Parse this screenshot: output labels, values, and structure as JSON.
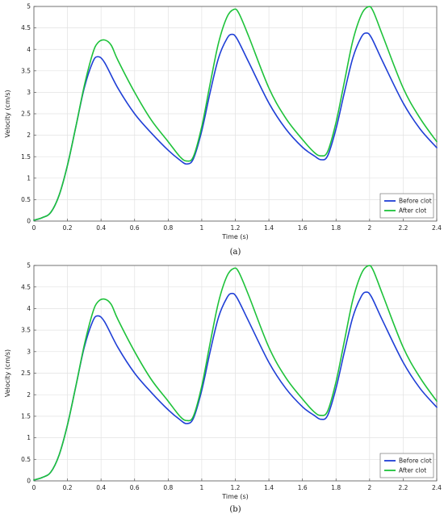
{
  "chart_data": [
    {
      "type": "line",
      "caption": "(a)",
      "xlabel": "Time (s)",
      "ylabel": "Velocity (cm/s)",
      "xlim": [
        0,
        2.4
      ],
      "ylim": [
        0,
        5
      ],
      "xticks": [
        0,
        0.2,
        0.4,
        0.6,
        0.8,
        1,
        1.2,
        1.4,
        1.6,
        1.8,
        2,
        2.2,
        2.4
      ],
      "xtick_labels": [
        "0",
        "0.2",
        "0.4",
        "0.6",
        "0.8",
        "1",
        "1.2",
        "1.4",
        "1.6",
        "1.8",
        "2",
        "2.2",
        "2.4"
      ],
      "yticks": [
        0,
        0.5,
        1,
        1.5,
        2,
        2.5,
        3,
        3.5,
        4,
        4.5,
        5
      ],
      "ytick_labels": [
        "0",
        "0.5",
        "1",
        "1.5",
        "2",
        "2.5",
        "3",
        "3.5",
        "4",
        "4.5",
        "5"
      ],
      "grid": true,
      "legend": "bottom-right",
      "series": [
        {
          "name": "Before clot",
          "color": "#1f3fd6",
          "x": [
            0,
            0.05,
            0.1,
            0.15,
            0.2,
            0.25,
            0.3,
            0.35,
            0.38,
            0.42,
            0.5,
            0.6,
            0.7,
            0.8,
            0.87,
            0.91,
            0.95,
            1.0,
            1.05,
            1.1,
            1.15,
            1.18,
            1.21,
            1.28,
            1.4,
            1.5,
            1.6,
            1.67,
            1.71,
            1.75,
            1.8,
            1.85,
            1.9,
            1.95,
            1.98,
            2.01,
            2.08,
            2.2,
            2.3,
            2.4
          ],
          "y": [
            0.02,
            0.08,
            0.2,
            0.6,
            1.3,
            2.2,
            3.1,
            3.7,
            3.83,
            3.7,
            3.1,
            2.5,
            2.05,
            1.65,
            1.42,
            1.33,
            1.45,
            2.1,
            3.0,
            3.8,
            4.25,
            4.35,
            4.25,
            3.7,
            2.75,
            2.15,
            1.72,
            1.52,
            1.43,
            1.52,
            2.15,
            3.0,
            3.8,
            4.28,
            4.38,
            4.28,
            3.7,
            2.75,
            2.15,
            1.71
          ]
        },
        {
          "name": "After clot",
          "color": "#1ec23a",
          "x": [
            0,
            0.05,
            0.1,
            0.15,
            0.2,
            0.25,
            0.3,
            0.35,
            0.38,
            0.42,
            0.46,
            0.5,
            0.6,
            0.7,
            0.8,
            0.87,
            0.91,
            0.95,
            1.0,
            1.05,
            1.1,
            1.15,
            1.19,
            1.22,
            1.28,
            1.4,
            1.5,
            1.6,
            1.67,
            1.71,
            1.75,
            1.8,
            1.85,
            1.9,
            1.95,
            1.99,
            2.02,
            2.08,
            2.2,
            2.3,
            2.4
          ],
          "y": [
            0.02,
            0.08,
            0.2,
            0.6,
            1.3,
            2.2,
            3.15,
            3.9,
            4.15,
            4.22,
            4.1,
            3.75,
            3.0,
            2.35,
            1.85,
            1.5,
            1.4,
            1.5,
            2.2,
            3.2,
            4.15,
            4.75,
            4.93,
            4.85,
            4.3,
            3.1,
            2.4,
            1.9,
            1.6,
            1.52,
            1.62,
            2.3,
            3.25,
            4.2,
            4.8,
            4.99,
            4.9,
            4.3,
            3.1,
            2.4,
            1.85
          ]
        }
      ]
    },
    {
      "type": "line",
      "caption": "(b)",
      "xlabel": "Time (s)",
      "ylabel": "Velocity (cm/s)",
      "xlim": [
        0,
        2.4
      ],
      "ylim": [
        0,
        5
      ],
      "xticks": [
        0,
        0.2,
        0.4,
        0.6,
        0.8,
        1,
        1.2,
        1.4,
        1.6,
        1.8,
        2,
        2.2,
        2.4
      ],
      "xtick_labels": [
        "0",
        "0.2",
        "0.4",
        "0.6",
        "0.8",
        "1",
        "1.2",
        "1.4",
        "1.6",
        "1.8",
        "2",
        "2.2",
        "2.4"
      ],
      "yticks": [
        0,
        0.5,
        1,
        1.5,
        2,
        2.5,
        3,
        3.5,
        4,
        4.5,
        5
      ],
      "ytick_labels": [
        "0",
        "0.5",
        "1",
        "1.5",
        "2",
        "2.5",
        "3",
        "3.5",
        "4",
        "4.5",
        "5"
      ],
      "grid": true,
      "legend": "bottom-right",
      "series": [
        {
          "name": "Before clot",
          "color": "#1f3fd6",
          "x": [
            0,
            0.05,
            0.1,
            0.15,
            0.2,
            0.25,
            0.3,
            0.35,
            0.38,
            0.42,
            0.5,
            0.6,
            0.7,
            0.8,
            0.87,
            0.91,
            0.95,
            1.0,
            1.05,
            1.1,
            1.15,
            1.18,
            1.21,
            1.28,
            1.4,
            1.5,
            1.6,
            1.67,
            1.71,
            1.75,
            1.8,
            1.85,
            1.9,
            1.95,
            1.98,
            2.01,
            2.08,
            2.2,
            2.3,
            2.4
          ],
          "y": [
            0.02,
            0.08,
            0.2,
            0.6,
            1.3,
            2.2,
            3.1,
            3.7,
            3.83,
            3.7,
            3.1,
            2.5,
            2.05,
            1.65,
            1.42,
            1.33,
            1.45,
            2.1,
            3.0,
            3.8,
            4.25,
            4.35,
            4.25,
            3.7,
            2.75,
            2.15,
            1.72,
            1.52,
            1.43,
            1.52,
            2.15,
            3.0,
            3.8,
            4.28,
            4.38,
            4.28,
            3.7,
            2.75,
            2.15,
            1.71
          ]
        },
        {
          "name": "After clot",
          "color": "#1ec23a",
          "x": [
            0,
            0.05,
            0.1,
            0.15,
            0.2,
            0.25,
            0.3,
            0.35,
            0.38,
            0.42,
            0.46,
            0.5,
            0.6,
            0.7,
            0.8,
            0.87,
            0.91,
            0.95,
            1.0,
            1.05,
            1.1,
            1.15,
            1.19,
            1.22,
            1.28,
            1.4,
            1.5,
            1.6,
            1.67,
            1.71,
            1.75,
            1.8,
            1.85,
            1.9,
            1.95,
            1.99,
            2.02,
            2.08,
            2.2,
            2.3,
            2.4
          ],
          "y": [
            0.02,
            0.08,
            0.2,
            0.6,
            1.3,
            2.2,
            3.15,
            3.9,
            4.15,
            4.22,
            4.1,
            3.75,
            3.0,
            2.35,
            1.85,
            1.5,
            1.4,
            1.5,
            2.2,
            3.2,
            4.15,
            4.75,
            4.93,
            4.85,
            4.3,
            3.1,
            2.4,
            1.9,
            1.6,
            1.52,
            1.62,
            2.3,
            3.25,
            4.2,
            4.8,
            4.99,
            4.9,
            4.3,
            3.1,
            2.4,
            1.85
          ]
        }
      ]
    }
  ]
}
